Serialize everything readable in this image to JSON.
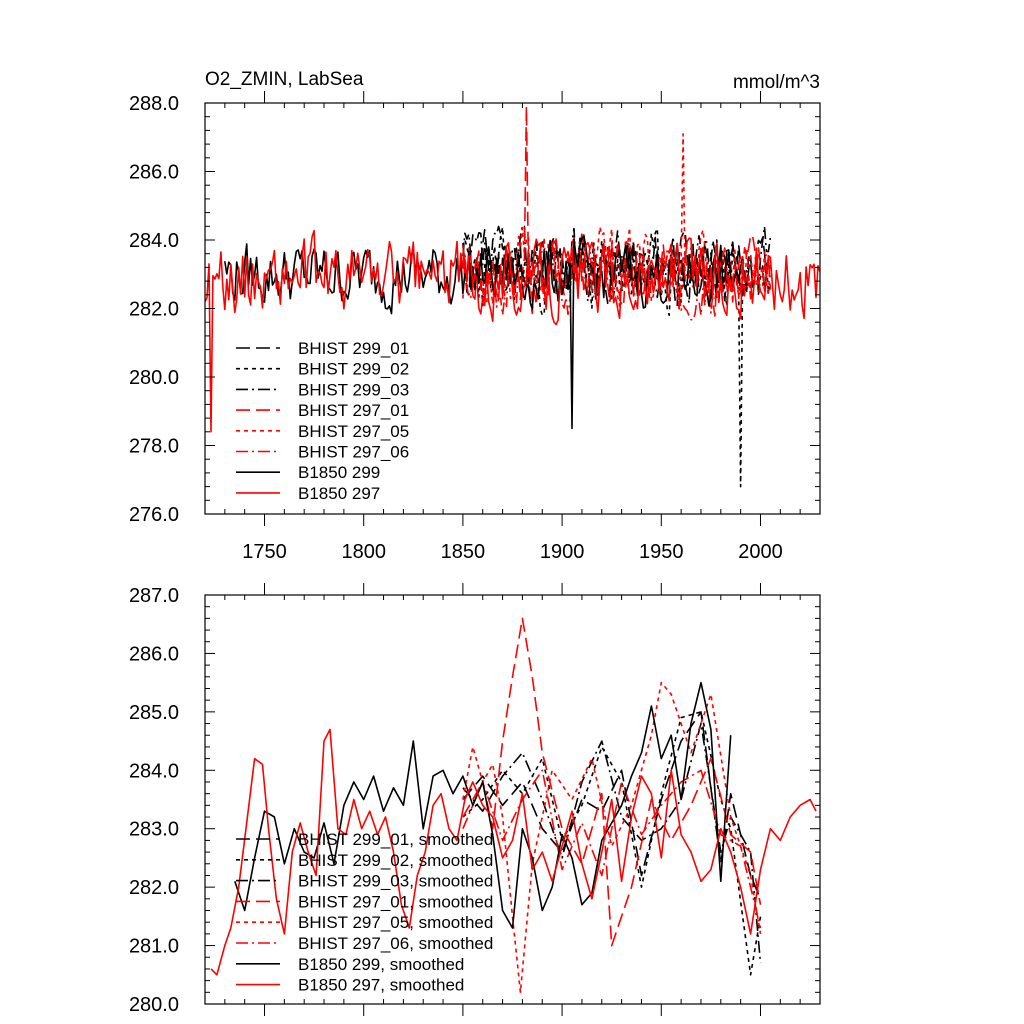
{
  "colors": {
    "black": "#000000",
    "red": "#ff0000"
  },
  "chart_data": [
    {
      "type": "line",
      "title": "O2_ZMIN, LabSea",
      "units": "mmol/m^3",
      "xlim": [
        1720,
        2030
      ],
      "ylim": [
        276,
        288
      ],
      "xticks": [
        1750,
        1800,
        1850,
        1900,
        1950,
        2000
      ],
      "yticks": [
        276,
        278,
        280,
        282,
        284,
        286,
        288
      ],
      "xtick_labels": [
        "1750",
        "1800",
        "1850",
        "1900",
        "1950",
        "2000"
      ],
      "ytick_labels": [
        "276.0",
        "278.0",
        "280.0",
        "282.0",
        "284.0",
        "286.0",
        "288.0"
      ],
      "legend_position": "bottom-left",
      "series": [
        {
          "name": "BHIST 299_01",
          "color": "#000000",
          "dash": "longdash",
          "start": 1850,
          "end": 2005,
          "base": 283.2,
          "amp": 1.6,
          "seed": 11
        },
        {
          "name": "BHIST 299_02",
          "color": "#000000",
          "dash": "shortdash",
          "start": 1850,
          "end": 2005,
          "base": 283.0,
          "amp": 1.7,
          "seed": 23
        },
        {
          "name": "BHIST 299_03",
          "color": "#000000",
          "dash": "dashdot",
          "start": 1850,
          "end": 2005,
          "base": 283.3,
          "amp": 1.5,
          "seed": 37
        },
        {
          "name": "BHIST 297_01",
          "color": "#ff0000",
          "dash": "longdash",
          "start": 1850,
          "end": 2005,
          "base": 283.0,
          "amp": 1.6,
          "seed": 41
        },
        {
          "name": "BHIST 297_05",
          "color": "#ff0000",
          "dash": "shortdash",
          "start": 1850,
          "end": 2005,
          "base": 283.2,
          "amp": 1.7,
          "seed": 53
        },
        {
          "name": "BHIST 297_06",
          "color": "#ff0000",
          "dash": "dashdot",
          "start": 1850,
          "end": 2005,
          "base": 282.9,
          "amp": 1.5,
          "seed": 67
        },
        {
          "name": "B1850 299",
          "color": "#000000",
          "dash": "solid",
          "start": 1730,
          "end": 1990,
          "base": 283.0,
          "amp": 1.4,
          "seed": 79
        },
        {
          "name": "B1850 297",
          "color": "#ff0000",
          "dash": "solid",
          "start": 1720,
          "end": 2030,
          "base": 282.9,
          "amp": 1.6,
          "seed": 89
        }
      ],
      "peaks": [
        {
          "series": "BHIST 297_01",
          "x": 1882,
          "y": 287.9
        },
        {
          "series": "BHIST 299_02",
          "x": 1990,
          "y": 276.8
        },
        {
          "series": "BHIST 297_05",
          "x": 1961,
          "y": 287.1
        },
        {
          "series": "B1850 297",
          "x": 1723,
          "y": 278.4
        },
        {
          "series": "B1850 299",
          "x": 1905,
          "y": 278.5
        }
      ]
    },
    {
      "type": "line",
      "title": "",
      "units": "",
      "xlim": [
        1720,
        2030
      ],
      "ylim": [
        280,
        287
      ],
      "xticks": [
        1750,
        1800,
        1850,
        1900,
        1950,
        2000
      ],
      "yticks": [
        280,
        281,
        282,
        283,
        284,
        285,
        286,
        287
      ],
      "xtick_labels": [
        "",
        "",
        "",
        "",
        "",
        ""
      ],
      "ytick_labels": [
        "280.0",
        "281.0",
        "282.0",
        "283.0",
        "284.0",
        "285.0",
        "286.0",
        "287.0"
      ],
      "legend_position": "bottom-left",
      "series": [
        {
          "name": "BHIST 299_01, smoothed",
          "color": "#000000",
          "dash": "longdash",
          "x": [
            1850,
            1860,
            1870,
            1880,
            1890,
            1900,
            1910,
            1920,
            1930,
            1940,
            1950,
            1960,
            1970,
            1980,
            1985,
            1995,
            2000
          ],
          "y": [
            283.5,
            283.9,
            283.4,
            283.8,
            283.0,
            282.6,
            283.5,
            283.3,
            284.0,
            282.2,
            283.5,
            284.5,
            285.0,
            282.4,
            283.6,
            282.2,
            281.8
          ]
        },
        {
          "name": "BHIST 299_02, smoothed",
          "color": "#000000",
          "dash": "shortdash",
          "x": [
            1850,
            1860,
            1870,
            1880,
            1890,
            1900,
            1910,
            1920,
            1930,
            1940,
            1950,
            1960,
            1970,
            1980,
            1985,
            1995,
            2000
          ],
          "y": [
            283.2,
            283.5,
            284.0,
            283.6,
            284.2,
            282.8,
            283.4,
            284.4,
            283.8,
            282.0,
            283.6,
            284.9,
            285.0,
            283.5,
            283.0,
            280.5,
            281.5
          ]
        },
        {
          "name": "BHIST 299_03, smoothed",
          "color": "#000000",
          "dash": "dashdot",
          "x": [
            1850,
            1860,
            1870,
            1880,
            1890,
            1900,
            1910,
            1920,
            1930,
            1940,
            1950,
            1960,
            1970,
            1980,
            1985,
            1995,
            2000
          ],
          "y": [
            283.7,
            283.3,
            283.9,
            284.3,
            283.5,
            282.5,
            283.8,
            284.5,
            283.2,
            282.8,
            283.0,
            283.5,
            284.8,
            282.6,
            283.2,
            282.6,
            280.7
          ]
        },
        {
          "name": "BHIST 297_01, smoothed",
          "color": "#ff0000",
          "dash": "longdash",
          "x": [
            1850,
            1860,
            1865,
            1870,
            1875,
            1880,
            1885,
            1890,
            1900,
            1910,
            1920,
            1925,
            1935,
            1945,
            1955,
            1965,
            1975,
            1985,
            1995,
            2000
          ],
          "y": [
            283.2,
            283.8,
            283.0,
            284.5,
            285.6,
            286.6,
            285.6,
            284.3,
            283.0,
            282.4,
            283.6,
            281.0,
            282.0,
            283.5,
            282.8,
            283.4,
            284.2,
            282.9,
            282.6,
            281.7
          ]
        },
        {
          "name": "BHIST 297_05, smoothed",
          "color": "#ff0000",
          "dash": "shortdash",
          "x": [
            1850,
            1855,
            1860,
            1865,
            1870,
            1875,
            1879,
            1885,
            1895,
            1905,
            1915,
            1925,
            1935,
            1945,
            1950,
            1955,
            1965,
            1975,
            1985,
            1995,
            2000
          ],
          "y": [
            283.5,
            284.4,
            283.8,
            284.1,
            283.2,
            281.5,
            280.2,
            282.4,
            284.0,
            283.5,
            284.2,
            282.7,
            283.4,
            284.6,
            285.5,
            285.3,
            284.3,
            285.3,
            283.2,
            282.2,
            281.2
          ]
        },
        {
          "name": "BHIST 297_06, smoothed",
          "color": "#ff0000",
          "dash": "dashdot",
          "x": [
            1850,
            1860,
            1870,
            1880,
            1890,
            1900,
            1910,
            1920,
            1930,
            1940,
            1950,
            1960,
            1970,
            1980,
            1990,
            2000
          ],
          "y": [
            283.0,
            283.8,
            282.8,
            283.5,
            284.0,
            282.3,
            283.1,
            282.2,
            283.8,
            282.9,
            283.4,
            283.8,
            284.0,
            282.9,
            282.7,
            281.3
          ]
        },
        {
          "name": "B1850 299, smoothed",
          "color": "#000000",
          "dash": "solid",
          "x": [
            1735,
            1740,
            1745,
            1750,
            1755,
            1760,
            1765,
            1770,
            1775,
            1780,
            1785,
            1790,
            1795,
            1800,
            1805,
            1810,
            1815,
            1820,
            1825,
            1830,
            1835,
            1840,
            1845,
            1850,
            1855,
            1860,
            1865,
            1870,
            1875,
            1880,
            1885,
            1890,
            1895,
            1900,
            1905,
            1910,
            1915,
            1920,
            1925,
            1930,
            1935,
            1940,
            1945,
            1950,
            1955,
            1960,
            1965,
            1970,
            1975,
            1980,
            1985
          ],
          "y": [
            282.1,
            281.6,
            282.5,
            283.3,
            283.2,
            282.4,
            283.0,
            282.6,
            282.5,
            283.1,
            282.4,
            283.4,
            283.8,
            283.5,
            283.9,
            283.3,
            283.7,
            283.4,
            284.5,
            283.0,
            283.9,
            284.0,
            283.6,
            283.9,
            283.4,
            283.8,
            282.9,
            281.6,
            281.3,
            283.0,
            282.5,
            281.6,
            282.0,
            282.9,
            282.5,
            281.7,
            281.9,
            282.8,
            283.1,
            283.4,
            283.9,
            284.3,
            285.1,
            284.2,
            284.6,
            283.5,
            284.8,
            285.5,
            284.7,
            282.1,
            284.6
          ]
        },
        {
          "name": "B1850 297, smoothed",
          "color": "#ff0000",
          "dash": "solid",
          "x": [
            1723,
            1726,
            1730,
            1733,
            1737,
            1741,
            1745,
            1749,
            1752,
            1756,
            1760,
            1764,
            1768,
            1772,
            1776,
            1780,
            1783,
            1787,
            1791,
            1795,
            1799,
            1803,
            1807,
            1811,
            1815,
            1819,
            1823,
            1827,
            1831,
            1835,
            1839,
            1843,
            1847,
            1851,
            1855,
            1860,
            1865,
            1870,
            1875,
            1880,
            1885,
            1890,
            1895,
            1900,
            1905,
            1910,
            1915,
            1920,
            1925,
            1930,
            1935,
            1940,
            1945,
            1950,
            1955,
            1960,
            1965,
            1970,
            1975,
            1980,
            1985,
            1990,
            1995,
            2000,
            2005,
            2010,
            2015,
            2020,
            2025,
            2028
          ],
          "y": [
            280.6,
            280.5,
            281.0,
            281.3,
            282.0,
            283.1,
            284.2,
            284.1,
            283.0,
            281.8,
            281.2,
            282.6,
            283.1,
            282.6,
            282.2,
            284.5,
            284.7,
            283.0,
            282.9,
            283.5,
            283.0,
            283.3,
            282.9,
            283.2,
            282.6,
            281.7,
            281.3,
            282.2,
            282.6,
            283.4,
            283.6,
            283.0,
            282.8,
            283.5,
            283.8,
            283.4,
            283.2,
            282.5,
            282.8,
            283.6,
            282.3,
            282.6,
            282.1,
            282.7,
            283.3,
            282.4,
            281.8,
            282.6,
            283.5,
            282.1,
            283.2,
            283.9,
            283.6,
            282.5,
            284.0,
            282.9,
            282.6,
            282.1,
            282.3,
            283.0,
            282.6,
            282.0,
            281.2,
            282.3,
            283.0,
            282.8,
            283.2,
            283.4,
            283.5,
            283.3
          ]
        }
      ]
    }
  ]
}
